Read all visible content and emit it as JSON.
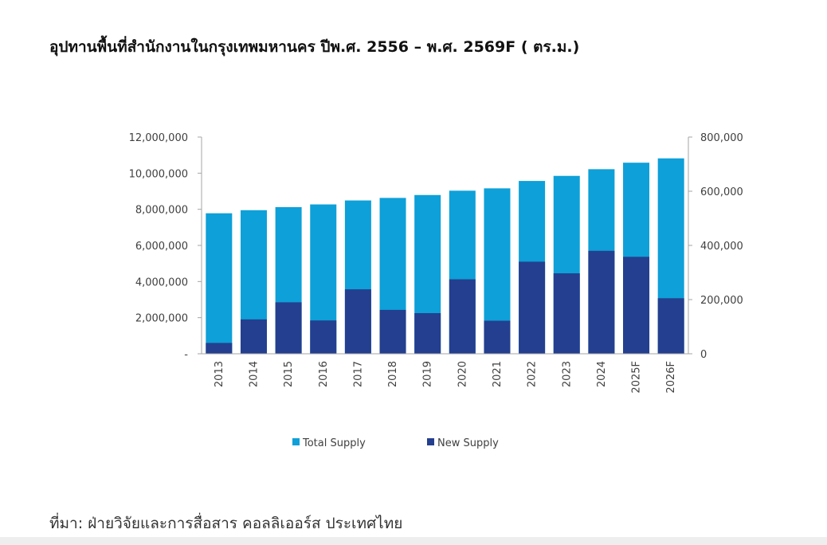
{
  "title": "อุปทานพื้นที่สำนักงานในกรุงเทพมหานคร ปีพ.ศ. 2556 – พ.ศ. 2569F ( ตร.ม.)",
  "source": "ที่มา: ฝ่ายวิจัยและการสื่อสาร คอลลิเออร์ส ประเทศไทย",
  "colors": {
    "total_supply": "#0ea0d8",
    "new_supply": "#243f8f",
    "axis": "#a6a6a6"
  },
  "chart_data": {
    "type": "bar",
    "title": "",
    "categories": [
      "2013",
      "2014",
      "2015",
      "2016",
      "2017",
      "2018",
      "2019",
      "2020",
      "2021",
      "2022",
      "2023",
      "2024",
      "2025F",
      "2026F"
    ],
    "series": [
      {
        "name": "Total Supply",
        "axis": "left",
        "values": [
          7780000,
          7950000,
          8120000,
          8270000,
          8490000,
          8630000,
          8790000,
          9030000,
          9160000,
          9570000,
          9850000,
          10220000,
          10580000,
          10820000
        ]
      },
      {
        "name": "New Supply",
        "axis": "right",
        "values": [
          40000,
          127000,
          190000,
          123000,
          238000,
          162000,
          150000,
          275000,
          122000,
          340000,
          297000,
          380000,
          358000,
          205000
        ]
      }
    ],
    "y_left": {
      "lim": [
        0,
        12000000
      ],
      "ticks": [
        0,
        2000000,
        4000000,
        6000000,
        8000000,
        10000000,
        12000000
      ],
      "tick_labels": [
        "-",
        "2,000,000",
        "4,000,000",
        "6,000,000",
        "8,000,000",
        "10,000,000",
        "12,000,000"
      ]
    },
    "y_right": {
      "lim": [
        0,
        800000
      ],
      "ticks": [
        0,
        200000,
        400000,
        600000,
        800000
      ],
      "tick_labels": [
        "0",
        "200,000",
        "400,000",
        "600,000",
        "800,000"
      ]
    },
    "xlabel": "",
    "ylabel": "",
    "grid": false,
    "legend": "bottom"
  }
}
